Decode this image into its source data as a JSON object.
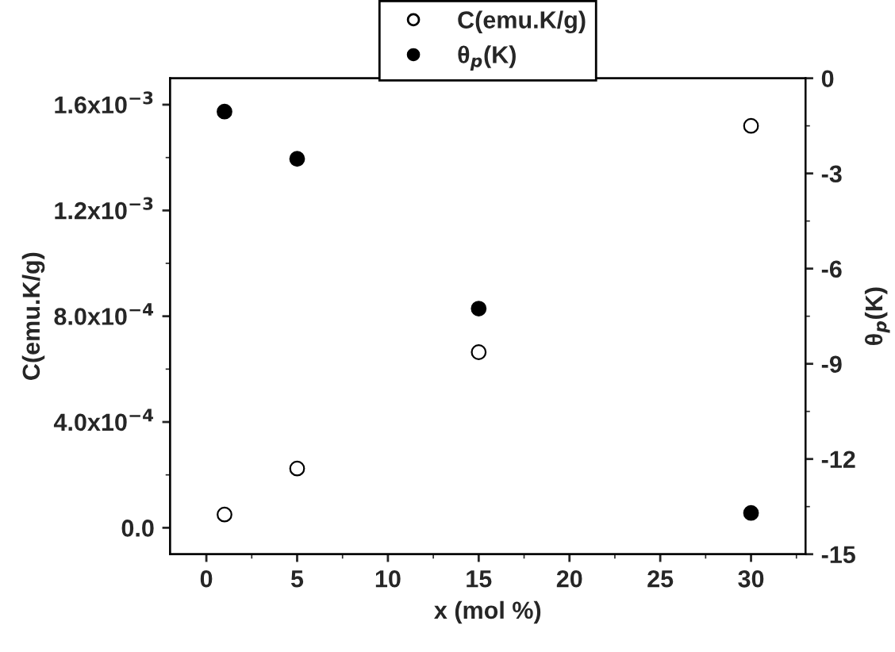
{
  "chart_data": {
    "type": "scatter",
    "xlabel": "x (mol %)",
    "ylabel": "C(emu.K/g)",
    "y2label": "θ$_{p}$(K)",
    "x": [
      1,
      5,
      15,
      30
    ],
    "series": [
      {
        "name": "C(emu.K/g)",
        "color": "#000000",
        "marker": "open circle",
        "values": [
          5e-05,
          0.000224,
          0.000664,
          0.00152
        ]
      },
      {
        "name": "θ$_{p}$(K)",
        "color": "#000000",
        "marker": "circle",
        "axis": "y2",
        "values": [
          -1.05,
          -2.54,
          -7.26,
          -13.7
        ]
      }
    ],
    "xlim": [
      -2,
      33
    ],
    "xticks": [
      0,
      5,
      10,
      15,
      20,
      25,
      30
    ],
    "ylim": [
      -0.0001,
      0.0017
    ],
    "yticks": [
      {
        "value": 0,
        "label": "0.0"
      },
      {
        "value": 0.0004,
        "label": "4.0x10$^{−4}$"
      },
      {
        "value": 0.0008,
        "label": "8.0x10$^{−4}$"
      },
      {
        "value": 0.0012,
        "label": "1.2x10$^{−3}$"
      },
      {
        "value": 0.0016,
        "label": "1.6x10$^{−3}$"
      }
    ],
    "y2lim": [
      -15,
      0
    ],
    "y2ticks": [
      -15,
      -12,
      -9,
      -6,
      -3,
      0
    ],
    "legend": "top",
    "grid": false
  }
}
